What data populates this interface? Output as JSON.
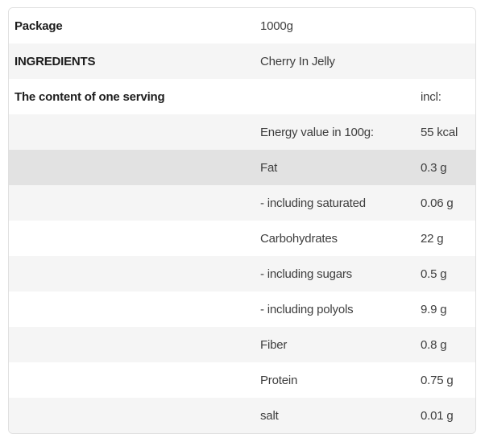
{
  "page": {
    "background": "#ffffff"
  },
  "colors": {
    "row_default": "#ffffff",
    "row_stripe": "#f5f5f5",
    "row_highlight": "#e2e2e2",
    "table_border": "#e0e0e0",
    "label_text": "#1d1d1d",
    "value_text": "#3e3e3e"
  },
  "table": {
    "rows": [
      {
        "label": "Package",
        "middle": "1000g",
        "right": "",
        "highlight": false
      },
      {
        "label": "INGREDIENTS",
        "middle": "Cherry In Jelly",
        "right": "",
        "highlight": false
      },
      {
        "label": "The content of one serving",
        "middle": "",
        "right": "incl:",
        "highlight": false
      },
      {
        "label": "",
        "middle": "Energy value in 100g:",
        "right": "55 kcal",
        "highlight": false
      },
      {
        "label": "",
        "middle": "Fat",
        "right": "0.3 g",
        "highlight": true
      },
      {
        "label": "",
        "middle": "- including saturated",
        "right": "0.06 g",
        "highlight": false
      },
      {
        "label": "",
        "middle": "Carbohydrates",
        "right": "22 g",
        "highlight": false
      },
      {
        "label": "",
        "middle": "- including sugars",
        "right": "0.5 g",
        "highlight": false
      },
      {
        "label": "",
        "middle": "- including polyols",
        "right": "9.9 g",
        "highlight": false
      },
      {
        "label": "",
        "middle": "Fiber",
        "right": "0.8 g",
        "highlight": false
      },
      {
        "label": "",
        "middle": "Protein",
        "right": "0.75 g",
        "highlight": false
      },
      {
        "label": "",
        "middle": "salt",
        "right": "0.01 g",
        "highlight": false
      }
    ]
  }
}
